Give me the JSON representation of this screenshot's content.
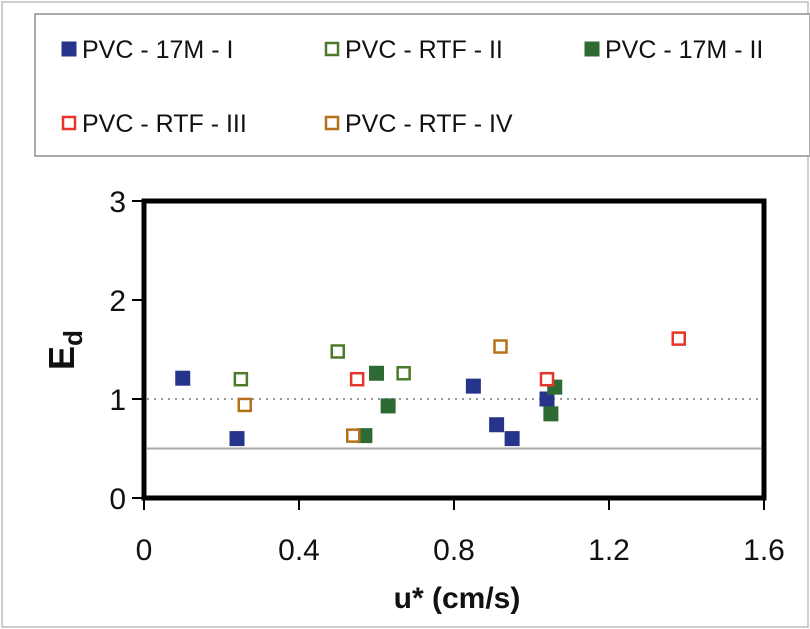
{
  "chart_data": {
    "type": "scatter",
    "title": "",
    "xlabel": "u* (cm/s)",
    "ylabel_main": "E",
    "ylabel_sub": "d",
    "xlim": [
      0,
      1.6
    ],
    "ylim": [
      0,
      3
    ],
    "x_ticks": [
      "0",
      "0.4",
      "0.8",
      "1.2",
      "1.6"
    ],
    "y_ticks": [
      "0",
      "1",
      "2",
      "3"
    ],
    "legend_position": "top",
    "reference_lines": [
      {
        "y": 1.0,
        "style": "dotted",
        "color": "#9a9a9a"
      },
      {
        "y": 0.5,
        "style": "solid",
        "color": "#a8a8a8"
      }
    ],
    "series": [
      {
        "name": "PVC - 17M - I",
        "marker": "filled-square",
        "color": "#27348b",
        "points": [
          [
            0.1,
            1.21
          ],
          [
            0.24,
            0.6
          ],
          [
            0.85,
            1.13
          ],
          [
            0.91,
            0.74
          ],
          [
            0.95,
            0.6
          ],
          [
            1.04,
            1.0
          ]
        ]
      },
      {
        "name": "PVC - RTF - II",
        "marker": "open-square",
        "color": "#4a7a2a",
        "points": [
          [
            0.25,
            1.2
          ],
          [
            0.5,
            1.48
          ],
          [
            0.67,
            1.26
          ]
        ]
      },
      {
        "name": "PVC - 17M - II",
        "marker": "filled-square",
        "color": "#2e6b34",
        "points": [
          [
            0.57,
            0.63
          ],
          [
            0.6,
            1.26
          ],
          [
            0.63,
            0.93
          ],
          [
            1.05,
            0.85
          ],
          [
            1.06,
            1.12
          ]
        ]
      },
      {
        "name": "PVC - RTF - III",
        "marker": "open-square",
        "color": "#e8352a",
        "points": [
          [
            0.55,
            1.2
          ],
          [
            1.04,
            1.2
          ],
          [
            1.38,
            1.61
          ]
        ]
      },
      {
        "name": "PVC - RTF - IV",
        "marker": "open-square",
        "color": "#b5701c",
        "points": [
          [
            0.26,
            0.94
          ],
          [
            0.54,
            0.63
          ],
          [
            0.92,
            1.53
          ]
        ]
      }
    ]
  }
}
